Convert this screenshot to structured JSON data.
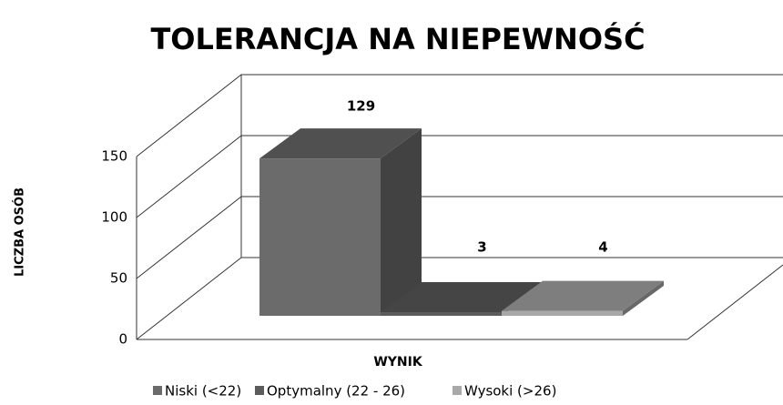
{
  "chart_data": {
    "type": "bar3d",
    "title": "TOLERANCJA NA NIEPEWNOŚĆ",
    "x_label": "WYNIK",
    "y_label": "LICZBA OSÓB",
    "series": [
      {
        "name": "Niski (<22)",
        "color": "#6b6b6b",
        "values": [
          129
        ]
      },
      {
        "name": "Optymalny (22 - 26)",
        "color": "#5c5c5c",
        "values": [
          3
        ]
      },
      {
        "name": "Wysoki (>26)",
        "color": "#a8a8a8",
        "values": [
          4
        ]
      }
    ],
    "ylim": [
      0,
      150
    ],
    "yticks": [
      0,
      50,
      100,
      150
    ],
    "grid": true,
    "legend": "bottom"
  }
}
